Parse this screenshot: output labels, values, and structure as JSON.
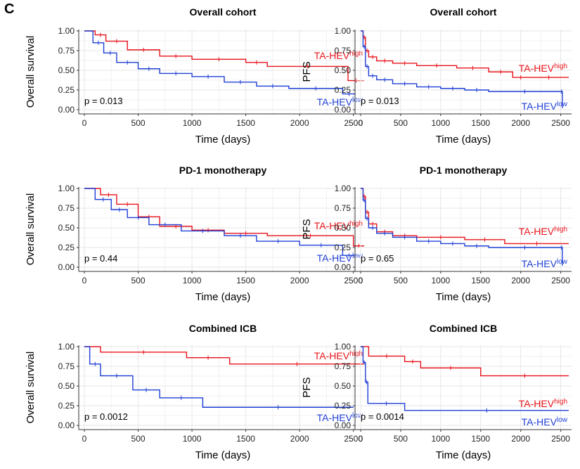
{
  "panel_letter": "C",
  "colors": {
    "high": "#e8141c",
    "low": "#1f3fd6",
    "grid": "#e6e6e6",
    "axis": "#333333"
  },
  "chart_data": [
    {
      "type": "line",
      "title": "Overall cohort",
      "xlabel": "Time (days)",
      "ylabel": "Overall survival",
      "xlim": [
        0,
        2600
      ],
      "ylim": [
        0,
        1
      ],
      "xticks": [
        "0",
        "500",
        "1000",
        "1500",
        "2000",
        "2500"
      ],
      "yticks": [
        "0.00",
        "0.25",
        "0.50",
        "0.75",
        "1.00"
      ],
      "pvalue": "p = 0.013",
      "series": [
        {
          "label": "TA-HEV",
          "sup": "high",
          "key": "high",
          "x": [
            0,
            100,
            200,
            400,
            700,
            1000,
            1500,
            1700,
            2450,
            2600
          ],
          "y": [
            1.0,
            0.95,
            0.87,
            0.76,
            0.68,
            0.64,
            0.6,
            0.55,
            0.37,
            0.37
          ]
        },
        {
          "label": "TA-HEV",
          "sup": "low",
          "key": "low",
          "x": [
            0,
            80,
            180,
            300,
            500,
            700,
            1000,
            1300,
            1600,
            1900,
            2400,
            2520
          ],
          "y": [
            1.0,
            0.85,
            0.72,
            0.6,
            0.52,
            0.46,
            0.42,
            0.35,
            0.3,
            0.27,
            0.2,
            0.2
          ]
        }
      ]
    },
    {
      "type": "line",
      "title": "Overall cohort",
      "xlabel": "Time (days)",
      "ylabel": "PFS",
      "xlim": [
        0,
        2600
      ],
      "ylim": [
        0,
        1
      ],
      "xticks": [
        "0",
        "500",
        "1000",
        "1500",
        "2000",
        "2500"
      ],
      "yticks": [
        "0.00",
        "0.25",
        "0.50",
        "0.75",
        "1.00"
      ],
      "pvalue": "p = 0.013",
      "series": [
        {
          "label": "TA-HEV",
          "sup": "high",
          "key": "high",
          "x": [
            0,
            30,
            60,
            100,
            200,
            400,
            700,
            1200,
            1600,
            1900,
            2100,
            2600
          ],
          "y": [
            1.0,
            0.92,
            0.75,
            0.67,
            0.62,
            0.59,
            0.56,
            0.53,
            0.48,
            0.41,
            0.41,
            0.41
          ]
        },
        {
          "label": "TA-HEV",
          "sup": "low",
          "key": "low",
          "x": [
            0,
            30,
            60,
            100,
            200,
            400,
            700,
            1000,
            1300,
            1600,
            2500,
            2520
          ],
          "y": [
            1.0,
            0.8,
            0.55,
            0.43,
            0.38,
            0.33,
            0.29,
            0.27,
            0.25,
            0.23,
            0.23,
            0.02
          ]
        }
      ]
    },
    {
      "type": "line",
      "title": "PD-1 monotherapy",
      "xlabel": "Time (days)",
      "ylabel": "Overall survival",
      "xlim": [
        0,
        2600
      ],
      "ylim": [
        0,
        1
      ],
      "xticks": [
        "0",
        "500",
        "1000",
        "1500",
        "2000",
        "2500"
      ],
      "yticks": [
        "0.00",
        "0.25",
        "0.50",
        "0.75",
        "1.00"
      ],
      "pvalue": "p = 0.44",
      "series": [
        {
          "label": "TA-HEV",
          "sup": "high",
          "key": "high",
          "x": [
            0,
            150,
            300,
            500,
            700,
            1000,
            1300,
            1700,
            2500,
            2600
          ],
          "y": [
            1.0,
            0.92,
            0.8,
            0.64,
            0.52,
            0.47,
            0.43,
            0.4,
            0.27,
            0.27
          ]
        },
        {
          "label": "TA-HEV",
          "sup": "low",
          "key": "low",
          "x": [
            0,
            100,
            250,
            400,
            600,
            900,
            1300,
            1600,
            2000,
            2400,
            2520
          ],
          "y": [
            1.0,
            0.86,
            0.73,
            0.63,
            0.54,
            0.46,
            0.4,
            0.33,
            0.28,
            0.15,
            0.15
          ]
        }
      ]
    },
    {
      "type": "line",
      "title": "PD-1 monotherapy",
      "xlabel": "Time (days)",
      "ylabel": "PFS",
      "xlim": [
        0,
        2600
      ],
      "ylim": [
        0,
        1
      ],
      "xticks": [
        "0",
        "500",
        "1000",
        "1500",
        "2000",
        "2500"
      ],
      "yticks": [
        "0.00",
        "0.25",
        "0.50",
        "0.75",
        "1.00"
      ],
      "pvalue": "p = 0.65",
      "series": [
        {
          "label": "TA-HEV",
          "sup": "high",
          "key": "high",
          "x": [
            0,
            30,
            60,
            100,
            200,
            400,
            700,
            1300,
            1800,
            2600
          ],
          "y": [
            1.0,
            0.9,
            0.7,
            0.55,
            0.45,
            0.4,
            0.38,
            0.35,
            0.3,
            0.3
          ]
        },
        {
          "label": "TA-HEV",
          "sup": "low",
          "key": "low",
          "x": [
            0,
            30,
            60,
            100,
            200,
            400,
            700,
            1000,
            1300,
            1600,
            2500,
            2520
          ],
          "y": [
            1.0,
            0.85,
            0.62,
            0.5,
            0.43,
            0.38,
            0.33,
            0.3,
            0.27,
            0.25,
            0.25,
            0.02
          ]
        }
      ]
    },
    {
      "type": "line",
      "title": "Combined ICB",
      "xlabel": "Time (days)",
      "ylabel": "Overall survival",
      "xlim": [
        0,
        2600
      ],
      "ylim": [
        0,
        1
      ],
      "xticks": [
        "0",
        "500",
        "1000",
        "1500",
        "2000",
        "2500"
      ],
      "yticks": [
        "0.00",
        "0.25",
        "0.50",
        "0.75",
        "1.00"
      ],
      "pvalue": "p = 0.0012",
      "series": [
        {
          "label": "TA-HEV",
          "sup": "high",
          "key": "high",
          "x": [
            0,
            150,
            950,
            1350,
            2600
          ],
          "y": [
            1.0,
            0.93,
            0.86,
            0.78,
            0.78
          ]
        },
        {
          "label": "TA-HEV",
          "sup": "low",
          "key": "low",
          "x": [
            0,
            50,
            150,
            450,
            700,
            1100,
            2500
          ],
          "y": [
            1.0,
            0.78,
            0.63,
            0.45,
            0.35,
            0.23,
            0.23
          ]
        }
      ]
    },
    {
      "type": "line",
      "title": "Combined ICB",
      "xlabel": "Time (days)",
      "ylabel": "PFS",
      "xlim": [
        0,
        2600
      ],
      "ylim": [
        0,
        1
      ],
      "xticks": [
        "0",
        "500",
        "1000",
        "1500",
        "2000",
        "2500"
      ],
      "yticks": [
        "0.00",
        "0.25",
        "0.50",
        "0.75",
        "1.00"
      ],
      "pvalue": "p = 0.0014",
      "series": [
        {
          "label": "TA-HEV",
          "sup": "high",
          "key": "high",
          "x": [
            0,
            100,
            550,
            750,
            1500,
            2600
          ],
          "y": [
            1.0,
            0.88,
            0.81,
            0.73,
            0.63,
            0.63
          ]
        },
        {
          "label": "TA-HEV",
          "sup": "low",
          "key": "low",
          "x": [
            0,
            30,
            60,
            90,
            550,
            2600
          ],
          "y": [
            1.0,
            0.8,
            0.55,
            0.28,
            0.19,
            0.19
          ]
        }
      ]
    }
  ]
}
